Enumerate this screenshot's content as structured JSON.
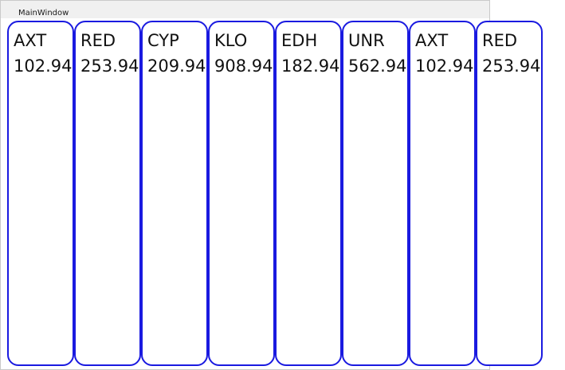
{
  "window": {
    "title": "MainWindow"
  },
  "tiles": [
    {
      "symbol": "AXT",
      "price": "102.94"
    },
    {
      "symbol": "RED",
      "price": "253.94"
    },
    {
      "symbol": "CYP",
      "price": "209.94"
    },
    {
      "symbol": "KLO",
      "price": "908.94"
    },
    {
      "symbol": "EDH",
      "price": "182.94"
    },
    {
      "symbol": "UNR",
      "price": "562.94"
    },
    {
      "symbol": "AXT",
      "price": "102.94"
    },
    {
      "symbol": "RED",
      "price": "253.94"
    }
  ],
  "colors": {
    "tile_border": "#1a1ae0",
    "window_bg": "#f0f0f0",
    "content_bg": "#ffffff"
  }
}
